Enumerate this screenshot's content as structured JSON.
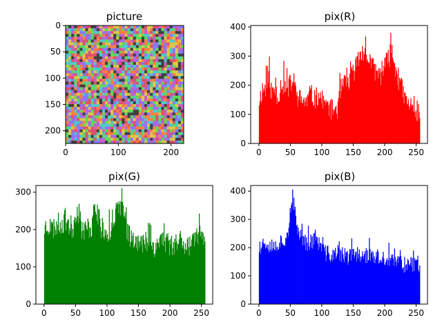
{
  "chart_data": [
    {
      "type": "heatmap",
      "title": "picture",
      "description_colors": [
        "#e0506e",
        "#5fd85a",
        "#8a78ff",
        "#d9c84a",
        "#c060d0",
        "#50c8c8",
        "#ff8040",
        "#404040"
      ],
      "xlim": [
        0,
        224
      ],
      "ylim": [
        224,
        0
      ],
      "xticks": [
        0,
        100,
        200
      ],
      "yticks": [
        0,
        50,
        100,
        150,
        200
      ],
      "seed": 7
    },
    {
      "type": "bar",
      "title": "pix(R)",
      "color": "#ff0000",
      "xlim": [
        -13,
        268
      ],
      "ylim": [
        0,
        405
      ],
      "xticks": [
        0,
        50,
        100,
        150,
        200,
        250
      ],
      "yticks": [
        0,
        100,
        200,
        300,
        400
      ],
      "profile": [
        [
          0,
          150
        ],
        [
          5,
          185
        ],
        [
          10,
          190
        ],
        [
          15,
          225
        ],
        [
          20,
          170
        ],
        [
          25,
          185
        ],
        [
          30,
          160
        ],
        [
          35,
          210
        ],
        [
          40,
          195
        ],
        [
          45,
          180
        ],
        [
          50,
          210
        ],
        [
          55,
          210
        ],
        [
          60,
          160
        ],
        [
          65,
          150
        ],
        [
          70,
          150
        ],
        [
          75,
          140
        ],
        [
          80,
          170
        ],
        [
          85,
          160
        ],
        [
          90,
          150
        ],
        [
          95,
          175
        ],
        [
          100,
          145
        ],
        [
          105,
          130
        ],
        [
          110,
          130
        ],
        [
          115,
          115
        ],
        [
          120,
          120
        ],
        [
          125,
          120
        ],
        [
          130,
          185
        ],
        [
          135,
          200
        ],
        [
          140,
          205
        ],
        [
          145,
          220
        ],
        [
          150,
          245
        ],
        [
          155,
          275
        ],
        [
          160,
          300
        ],
        [
          165,
          320
        ],
        [
          170,
          290
        ],
        [
          175,
          295
        ],
        [
          180,
          260
        ],
        [
          185,
          250
        ],
        [
          190,
          235
        ],
        [
          195,
          240
        ],
        [
          200,
          270
        ],
        [
          205,
          285
        ],
        [
          210,
          320
        ],
        [
          215,
          275
        ],
        [
          220,
          230
        ],
        [
          225,
          200
        ],
        [
          230,
          160
        ],
        [
          235,
          140
        ],
        [
          240,
          130
        ],
        [
          245,
          115
        ],
        [
          250,
          110
        ],
        [
          255,
          110
        ]
      ],
      "noise": 38,
      "seed": 11
    },
    {
      "type": "bar",
      "title": "pix(G)",
      "color": "#008000",
      "xlim": [
        -13,
        268
      ],
      "ylim": [
        0,
        318
      ],
      "xticks": [
        0,
        50,
        100,
        150,
        200,
        250
      ],
      "yticks": [
        0,
        100,
        200,
        300
      ],
      "profile": [
        [
          0,
          205
        ],
        [
          5,
          215
        ],
        [
          10,
          200
        ],
        [
          15,
          205
        ],
        [
          20,
          215
        ],
        [
          25,
          215
        ],
        [
          30,
          220
        ],
        [
          35,
          230
        ],
        [
          40,
          210
        ],
        [
          45,
          200
        ],
        [
          50,
          255
        ],
        [
          55,
          235
        ],
        [
          60,
          200
        ],
        [
          65,
          200
        ],
        [
          70,
          205
        ],
        [
          75,
          210
        ],
        [
          80,
          260
        ],
        [
          85,
          240
        ],
        [
          90,
          200
        ],
        [
          95,
          200
        ],
        [
          100,
          195
        ],
        [
          105,
          200
        ],
        [
          110,
          230
        ],
        [
          115,
          240
        ],
        [
          120,
          250
        ],
        [
          125,
          245
        ],
        [
          130,
          205
        ],
        [
          135,
          185
        ],
        [
          140,
          180
        ],
        [
          145,
          185
        ],
        [
          150,
          160
        ],
        [
          155,
          160
        ],
        [
          160,
          165
        ],
        [
          165,
          180
        ],
        [
          170,
          160
        ],
        [
          175,
          155
        ],
        [
          180,
          160
        ],
        [
          185,
          180
        ],
        [
          190,
          170
        ],
        [
          195,
          165
        ],
        [
          200,
          160
        ],
        [
          205,
          155
        ],
        [
          210,
          170
        ],
        [
          215,
          175
        ],
        [
          220,
          175
        ],
        [
          225,
          160
        ],
        [
          230,
          160
        ],
        [
          235,
          155
        ],
        [
          240,
          165
        ],
        [
          245,
          185
        ],
        [
          250,
          180
        ],
        [
          255,
          170
        ]
      ],
      "noise": 32,
      "seed": 23
    },
    {
      "type": "bar",
      "title": "pix(B)",
      "color": "#0000ff",
      "xlim": [
        -13,
        268
      ],
      "ylim": [
        0,
        420
      ],
      "xticks": [
        0,
        50,
        100,
        150,
        200,
        250
      ],
      "yticks": [
        0,
        100,
        200,
        300,
        400
      ],
      "profile": [
        [
          0,
          200
        ],
        [
          5,
          215
        ],
        [
          10,
          220
        ],
        [
          15,
          215
        ],
        [
          20,
          200
        ],
        [
          25,
          205
        ],
        [
          30,
          215
        ],
        [
          35,
          225
        ],
        [
          40,
          230
        ],
        [
          45,
          250
        ],
        [
          50,
          330
        ],
        [
          55,
          350
        ],
        [
          60,
          270
        ],
        [
          65,
          250
        ],
        [
          70,
          230
        ],
        [
          75,
          215
        ],
        [
          80,
          220
        ],
        [
          85,
          225
        ],
        [
          90,
          240
        ],
        [
          95,
          210
        ],
        [
          100,
          200
        ],
        [
          105,
          180
        ],
        [
          110,
          180
        ],
        [
          115,
          170
        ],
        [
          120,
          175
        ],
        [
          125,
          180
        ],
        [
          130,
          175
        ],
        [
          135,
          170
        ],
        [
          140,
          165
        ],
        [
          145,
          170
        ],
        [
          150,
          175
        ],
        [
          155,
          175
        ],
        [
          160,
          175
        ],
        [
          165,
          185
        ],
        [
          170,
          170
        ],
        [
          175,
          175
        ],
        [
          180,
          165
        ],
        [
          185,
          165
        ],
        [
          190,
          165
        ],
        [
          195,
          155
        ],
        [
          200,
          160
        ],
        [
          205,
          150
        ],
        [
          210,
          150
        ],
        [
          215,
          150
        ],
        [
          220,
          150
        ],
        [
          225,
          150
        ],
        [
          230,
          140
        ],
        [
          235,
          145
        ],
        [
          240,
          145
        ],
        [
          245,
          140
        ],
        [
          250,
          150
        ],
        [
          255,
          140
        ]
      ],
      "noise": 30,
      "seed": 37
    }
  ]
}
